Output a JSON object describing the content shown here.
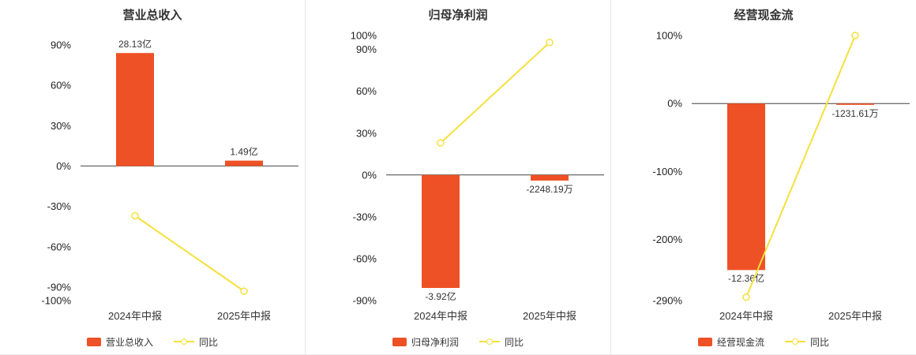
{
  "colors": {
    "bar": "#ee5125",
    "line": "#f5e03b",
    "marker_fill": "#ffffff",
    "zero_line": "#444444",
    "axis_text": "#222222",
    "value_text": "#333333",
    "category_text": "#333333"
  },
  "chart_data": [
    {
      "type": "bar+line",
      "title": "营业总收入",
      "categories": [
        "2024年中报",
        "2025年中报"
      ],
      "bar_series": {
        "name": "营业总收入",
        "value_labels": [
          "28.13亿",
          "1.49亿"
        ],
        "pct_heights": [
          84,
          4
        ]
      },
      "line_series": {
        "name": "同比",
        "pct_values": [
          -37,
          -93
        ]
      },
      "yticks": [
        90,
        60,
        30,
        0,
        -30,
        -60,
        -90,
        -100
      ],
      "ylim": [
        -100,
        97
      ],
      "grid": false,
      "legend_position": "bottom"
    },
    {
      "type": "bar+line",
      "title": "归母净利润",
      "categories": [
        "2024年中报",
        "2025年中报"
      ],
      "bar_series": {
        "name": "归母净利润",
        "value_labels": [
          "-3.92亿",
          "-2248.19万"
        ],
        "pct_heights": [
          -81,
          -4
        ]
      },
      "line_series": {
        "name": "同比",
        "pct_values": [
          23,
          95
        ]
      },
      "yticks": [
        100,
        90,
        60,
        30,
        0,
        -30,
        -60,
        -90
      ],
      "ylim": [
        -90,
        100
      ],
      "grid": false,
      "legend_position": "bottom"
    },
    {
      "type": "bar+line",
      "title": "经营现金流",
      "categories": [
        "2024年中报",
        "2025年中报"
      ],
      "bar_series": {
        "name": "经营现金流",
        "value_labels": [
          "-12.36亿",
          "-1231.61万"
        ],
        "pct_heights": [
          -245,
          -2
        ]
      },
      "line_series": {
        "name": "同比",
        "pct_values": [
          -285,
          100
        ]
      },
      "yticks": [
        100,
        0,
        -100,
        -200,
        -290
      ],
      "ylim": [
        -290,
        100
      ],
      "grid": false,
      "legend_position": "bottom"
    }
  ]
}
